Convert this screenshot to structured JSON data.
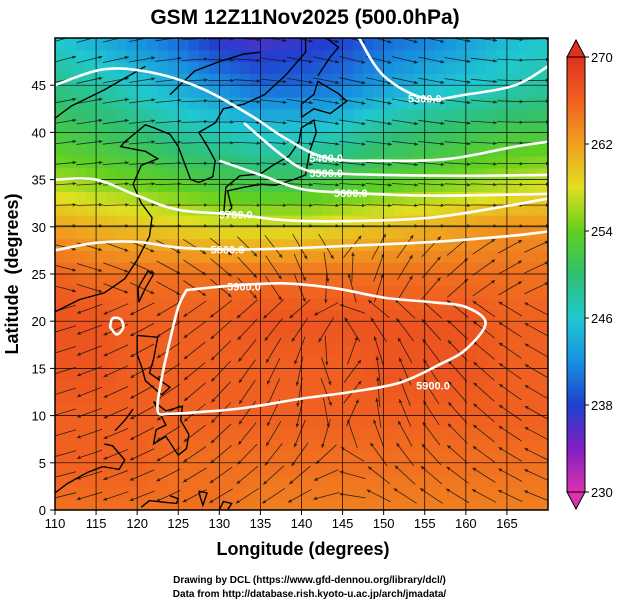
{
  "chart_data": {
    "type": "heatmap",
    "title": "GSM 12Z11Nov2025 (500.0hPa)",
    "xlabel": "Longitude (degrees)",
    "ylabel": "Latitude  (degrees)",
    "xlim": [
      110,
      170
    ],
    "ylim": [
      0,
      50
    ],
    "x_ticks": [
      110,
      115,
      120,
      125,
      130,
      135,
      140,
      145,
      150,
      155,
      160,
      165
    ],
    "y_ticks": [
      0,
      5,
      10,
      15,
      20,
      25,
      30,
      35,
      40,
      45
    ],
    "colorbar": {
      "min": 230,
      "max": 270,
      "tick_values": [
        230,
        238,
        246,
        254,
        262,
        270
      ],
      "tick_labels": [
        "230",
        "238",
        "246",
        "254",
        "262",
        "270"
      ],
      "colors": [
        "#e030b0",
        "#8020c0",
        "#2040d0",
        "#1890e0",
        "#20c8d0",
        "#30c070",
        "#60d020",
        "#e0e020",
        "#f0a020",
        "#f06020",
        "#e03020"
      ]
    },
    "contour_labels": [
      "5300.0",
      "5400.0",
      "5500.0",
      "5600.0",
      "5700.0",
      "5800.0",
      "5900.0",
      "5900.0"
    ],
    "temperature_field": [
      {
        "lat": 50,
        "values": [
          246,
          244,
          242,
          240,
          237,
          236,
          237,
          238,
          240,
          241,
          243,
          245,
          246
        ]
      },
      {
        "lat": 45,
        "values": [
          249,
          248,
          246,
          244,
          242,
          240,
          240,
          241,
          243,
          245,
          246,
          247,
          248
        ]
      },
      {
        "lat": 40,
        "values": [
          252,
          251,
          250,
          248,
          247,
          246,
          246,
          247,
          249,
          250,
          251,
          252,
          252
        ]
      },
      {
        "lat": 35,
        "values": [
          256,
          255,
          254,
          253,
          252,
          251,
          251,
          252,
          253,
          254,
          255,
          256,
          257
        ]
      },
      {
        "lat": 30,
        "values": [
          262,
          261,
          260,
          259,
          258,
          258,
          258,
          259,
          260,
          261,
          262,
          263,
          263
        ]
      },
      {
        "lat": 25,
        "values": [
          266,
          265,
          265,
          265,
          265,
          265,
          265,
          265,
          265,
          265,
          265,
          265,
          265
        ]
      },
      {
        "lat": 20,
        "values": [
          267,
          267,
          266,
          266,
          266,
          267,
          267,
          267,
          267,
          267,
          267,
          266,
          266
        ]
      },
      {
        "lat": 15,
        "values": [
          267,
          267,
          266,
          266,
          266,
          266,
          266,
          266,
          267,
          267,
          267,
          266,
          266
        ]
      },
      {
        "lat": 10,
        "values": [
          266,
          266,
          266,
          266,
          266,
          266,
          266,
          266,
          266,
          266,
          266,
          266,
          266
        ]
      },
      {
        "lat": 5,
        "values": [
          266,
          266,
          266,
          265,
          265,
          265,
          265,
          265,
          265,
          265,
          265,
          265,
          265
        ]
      },
      {
        "lat": 0,
        "values": [
          265,
          265,
          265,
          265,
          265,
          264,
          264,
          264,
          264,
          264,
          264,
          264,
          264
        ]
      }
    ],
    "temperature_field_lons": [
      110,
      115,
      120,
      125,
      130,
      135,
      140,
      145,
      150,
      155,
      160,
      165,
      170
    ],
    "height_contours": [
      {
        "value": 5300,
        "label": "5300.0",
        "label_pos": [
          155,
          43.6
        ],
        "points": [
          [
            147,
            50
          ],
          [
            150,
            46
          ],
          [
            155,
            43.6
          ],
          [
            160,
            44
          ],
          [
            166,
            45
          ],
          [
            170,
            47
          ]
        ]
      },
      {
        "value": 5400,
        "label": "5400.0",
        "label_pos": [
          143,
          37.3
        ],
        "points": [
          [
            110,
            45
          ],
          [
            116,
            46.7
          ],
          [
            122,
            46.3
          ],
          [
            128,
            44.6
          ],
          [
            134,
            41.7
          ],
          [
            138,
            39.4
          ],
          [
            143,
            37.3
          ],
          [
            150,
            37
          ],
          [
            158,
            37.2
          ],
          [
            166,
            38.5
          ],
          [
            170,
            39
          ]
        ]
      },
      {
        "value": 5500,
        "label": "5500.0",
        "label_pos": [
          143,
          35.7
        ],
        "points": [
          [
            133,
            41
          ],
          [
            137,
            38
          ],
          [
            140,
            36.2
          ],
          [
            143,
            35.7
          ],
          [
            150,
            35.5
          ],
          [
            160,
            35.4
          ],
          [
            170,
            35.5
          ]
        ]
      },
      {
        "value": 5600,
        "label": "5600.0",
        "label_pos": [
          146,
          33.6
        ],
        "points": [
          [
            130,
            37
          ],
          [
            135,
            35.5
          ],
          [
            140,
            34
          ],
          [
            146,
            33.6
          ],
          [
            155,
            33.3
          ],
          [
            165,
            33.4
          ],
          [
            170,
            33.5
          ]
        ]
      },
      {
        "value": 5700,
        "label": "5700.0",
        "label_pos": [
          132,
          31.3
        ],
        "points": [
          [
            110,
            35
          ],
          [
            115,
            35
          ],
          [
            120,
            33.3
          ],
          [
            125,
            31.8
          ],
          [
            132,
            31.3
          ],
          [
            138,
            30.7
          ],
          [
            146,
            30.6
          ],
          [
            156,
            31
          ],
          [
            165,
            32.2
          ],
          [
            170,
            33
          ]
        ]
      },
      {
        "value": 5800,
        "label": "5800.0",
        "label_pos": [
          131,
          27.6
        ],
        "points": [
          [
            110,
            27.5
          ],
          [
            115,
            28.3
          ],
          [
            120,
            28.4
          ],
          [
            125,
            27.8
          ],
          [
            131,
            27.6
          ],
          [
            138,
            27.7
          ],
          [
            146,
            28
          ],
          [
            156,
            28.4
          ],
          [
            165,
            29
          ],
          [
            170,
            29.5
          ]
        ]
      },
      {
        "value": 5900,
        "label": "5900.0",
        "label_pos": [
          133,
          23.7
        ],
        "closed": true,
        "points": [
          [
            126,
            23.3
          ],
          [
            132,
            23.8
          ],
          [
            138,
            24
          ],
          [
            144,
            23.5
          ],
          [
            150,
            22.5
          ],
          [
            156,
            22
          ],
          [
            160,
            21.5
          ],
          [
            162.4,
            19.8
          ],
          [
            160,
            17
          ],
          [
            157,
            15.5
          ],
          [
            152,
            13.5
          ],
          [
            146,
            12.5
          ],
          [
            140,
            11.8
          ],
          [
            133,
            10.8
          ],
          [
            128,
            10.4
          ],
          [
            124,
            10.2
          ],
          [
            122.5,
            10.5
          ],
          [
            123,
            14
          ],
          [
            124,
            18
          ],
          [
            125,
            21.5
          ],
          [
            126,
            23.3
          ]
        ]
      },
      {
        "value": 5900,
        "label": "5900.0",
        "label_pos": [
          156,
          13.2
        ],
        "points": []
      },
      {
        "value": 5900,
        "label": "",
        "closed": true,
        "points": [
          [
            116.7,
            19.4
          ],
          [
            117.5,
            18.6
          ],
          [
            118.3,
            19.3
          ],
          [
            118,
            20.2
          ],
          [
            117,
            20.3
          ],
          [
            116.7,
            19.4
          ]
        ]
      }
    ]
  },
  "credits": {
    "line1": "Drawing by DCL (https://www.gfd-dennou.org/library/dcl/)",
    "line2": "Data from http://database.rish.kyoto-u.ac.jp/arch/jmadata/"
  }
}
